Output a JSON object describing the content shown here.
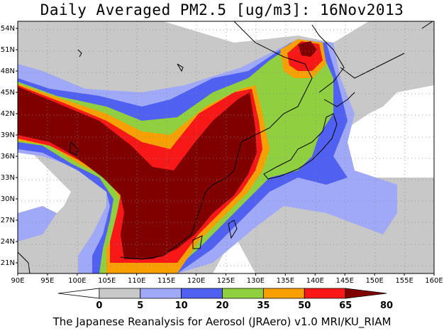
{
  "title": "Daily Averaged PM2.5 [ug/m3]: 16Nov2013",
  "footer": "The Japanese Reanalysis for Aerosol (JRAero) v1.0 MRI/KU_RIAM",
  "map": {
    "lon_range": [
      90,
      160
    ],
    "lat_range": [
      19.5,
      55
    ],
    "lat_labels": [
      "21N",
      "24N",
      "27N",
      "30N",
      "33N",
      "36N",
      "39N",
      "42N",
      "45N",
      "48N",
      "51N",
      "54N"
    ],
    "lon_labels": [
      "90E",
      "95E",
      "100E",
      "105E",
      "110E",
      "115E",
      "120E",
      "125E",
      "130E",
      "135E",
      "140E",
      "145E",
      "150E",
      "155E",
      "160E"
    ],
    "grid": "dotted"
  },
  "colorbar": {
    "levels": [
      "0",
      "5",
      "10",
      "20",
      "35",
      "50",
      "65",
      "80"
    ],
    "colors": [
      "#ffffff",
      "#c8c8c8",
      "#a0a8f8",
      "#5060f0",
      "#90d040",
      "#f8a000",
      "#f81818",
      "#800000"
    ]
  }
}
